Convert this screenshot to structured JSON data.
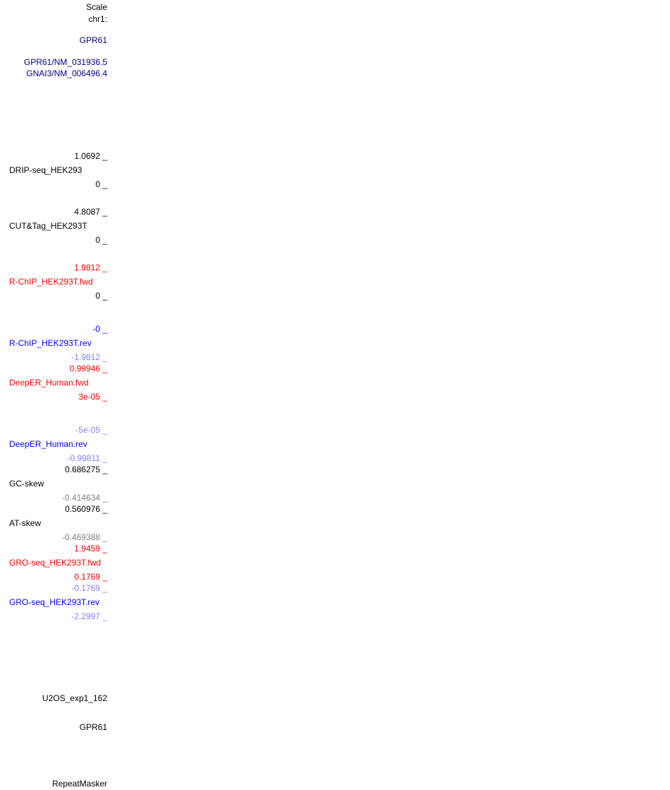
{
  "colors": {
    "black": "#000000",
    "navy": "#000080",
    "red": "#ff0000",
    "blue": "#0000ff",
    "light_blue": "#8080ff",
    "gray": "#808080"
  },
  "labels": [
    {
      "text": "Scale",
      "kind": "ruler-label",
      "align": "right",
      "color": "black",
      "row": 10
    },
    {
      "text": "chr1:",
      "kind": "chromosome-label",
      "align": "right",
      "color": "black",
      "row": 27
    },
    {
      "text": "GPR61",
      "kind": "gene-label",
      "align": "right",
      "color": "navy",
      "row": 57
    },
    {
      "text": "GPR61/NM_031936.5",
      "kind": "transcript-label",
      "align": "right",
      "color": "navy",
      "row": 88
    },
    {
      "text": "GNAI3/NM_006496.4",
      "kind": "transcript-label",
      "align": "right",
      "color": "navy",
      "row": 104
    },
    {
      "text": "1.0692 _",
      "kind": "axis-max",
      "align": "right",
      "color": "black",
      "row": 221
    },
    {
      "text": "DRIP-seq_HEK293",
      "kind": "track-name",
      "align": "left",
      "color": "black",
      "row": 241
    },
    {
      "text": "0 _",
      "kind": "axis-min",
      "align": "right",
      "color": "black",
      "row": 261
    },
    {
      "text": "4.8087 _",
      "kind": "axis-max",
      "align": "right",
      "color": "black",
      "row": 300
    },
    {
      "text": "CUT&Tag_HEK293T",
      "kind": "track-name",
      "align": "left",
      "color": "black",
      "row": 320
    },
    {
      "text": "0 _",
      "kind": "axis-min",
      "align": "right",
      "color": "black",
      "row": 340
    },
    {
      "text": "1.9812 _",
      "kind": "axis-max",
      "align": "right",
      "color": "red",
      "row": 379
    },
    {
      "text": "R-ChIP_HEK293T.fwd",
      "kind": "track-name",
      "align": "left",
      "color": "red",
      "row": 399
    },
    {
      "text": "0 _",
      "kind": "axis-min",
      "align": "right",
      "color": "black",
      "row": 419
    },
    {
      "text": "-0 _",
      "kind": "axis-max",
      "align": "right",
      "color": "blue",
      "row": 466
    },
    {
      "text": "R-ChIP_HEK293T.rev",
      "kind": "track-name",
      "align": "left",
      "color": "blue",
      "row": 486
    },
    {
      "text": "-1.9812 _",
      "kind": "axis-min",
      "align": "right",
      "color": "light_blue",
      "row": 506
    },
    {
      "text": "0.99946 _",
      "kind": "axis-max",
      "align": "right",
      "color": "red",
      "row": 522
    },
    {
      "text": "DeepER_Human.fwd",
      "kind": "track-name",
      "align": "left",
      "color": "red",
      "row": 542
    },
    {
      "text": "3e-05 _",
      "kind": "axis-min",
      "align": "right",
      "color": "red",
      "row": 562
    },
    {
      "text": "-5e-05 _",
      "kind": "axis-max",
      "align": "right",
      "color": "light_blue",
      "row": 609
    },
    {
      "text": "DeepER_Human.rev",
      "kind": "track-name",
      "align": "left",
      "color": "blue",
      "row": 629
    },
    {
      "text": "-0.99811 _",
      "kind": "axis-min",
      "align": "right",
      "color": "light_blue",
      "row": 649
    },
    {
      "text": "0.686275 _",
      "kind": "axis-max",
      "align": "right",
      "color": "black",
      "row": 665
    },
    {
      "text": "GC-skew",
      "kind": "track-name",
      "align": "left",
      "color": "black",
      "row": 685
    },
    {
      "text": "-0.414634 _",
      "kind": "axis-min",
      "align": "right",
      "color": "gray",
      "row": 705
    },
    {
      "text": "0.560976 _",
      "kind": "axis-max",
      "align": "right",
      "color": "black",
      "row": 721
    },
    {
      "text": "AT-skew",
      "kind": "track-name",
      "align": "left",
      "color": "black",
      "row": 741
    },
    {
      "text": "-0.469388 _",
      "kind": "axis-min",
      "align": "right",
      "color": "gray",
      "row": 761
    },
    {
      "text": "1.9459 _",
      "kind": "axis-max",
      "align": "right",
      "color": "red",
      "row": 777
    },
    {
      "text": "GRO-seq_HEK293T.fwd",
      "kind": "track-name",
      "align": "left",
      "color": "red",
      "row": 797
    },
    {
      "text": "0.1769 _",
      "kind": "axis-min",
      "align": "right",
      "color": "red",
      "row": 817
    },
    {
      "text": "-0.1769 _",
      "kind": "axis-max",
      "align": "right",
      "color": "light_blue",
      "row": 833
    },
    {
      "text": "GRO-seq_HEK293T.rev",
      "kind": "track-name",
      "align": "left",
      "color": "blue",
      "row": 853
    },
    {
      "text": "-2.2997 _",
      "kind": "axis-min",
      "align": "right",
      "color": "light_blue",
      "row": 873
    },
    {
      "text": "U2OS_exp1_162",
      "kind": "track-name",
      "align": "right",
      "color": "black",
      "row": 989
    },
    {
      "text": "GPR61",
      "kind": "track-name",
      "align": "right",
      "color": "black",
      "row": 1030
    },
    {
      "text": "RepeatMasker",
      "kind": "track-name",
      "align": "right",
      "color": "black",
      "row": 1110
    }
  ]
}
